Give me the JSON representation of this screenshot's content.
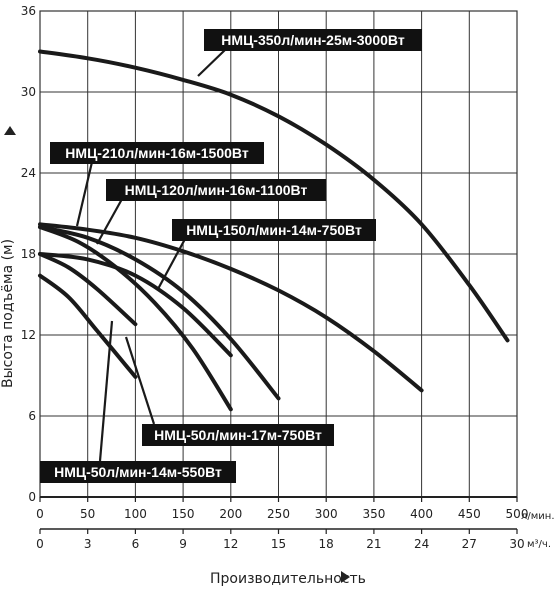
{
  "chart_data": {
    "type": "line",
    "title": "",
    "xlabel": "Производительность",
    "ylabel": "Высота подъёма (м)",
    "x_unit_primary": "л/мин.",
    "x_unit_secondary": "м³/ч.",
    "xlim": [
      0,
      500
    ],
    "ylim": [
      0,
      36
    ],
    "x_ticks_primary": [
      "0",
      "50",
      "100",
      "150",
      "200",
      "250",
      "300",
      "350",
      "400",
      "450",
      "500"
    ],
    "x_ticks_secondary": [
      "0",
      "3",
      "6",
      "9",
      "12",
      "15",
      "18",
      "21",
      "24",
      "27",
      "30"
    ],
    "y_ticks": [
      "0",
      "6",
      "12",
      "18",
      "24",
      "30",
      "36"
    ],
    "grid": true,
    "series": [
      {
        "name": "НМЦ-350л/мин-25м-3000Вт",
        "x": [
          0,
          50,
          100,
          150,
          200,
          250,
          300,
          350,
          400,
          450,
          490
        ],
        "y": [
          33.0,
          32.5,
          31.8,
          30.9,
          29.8,
          28.2,
          26.1,
          23.5,
          20.2,
          15.7,
          11.6
        ]
      },
      {
        "name": "НМЦ-210л/мин-16м-1500Вт",
        "x": [
          0,
          50,
          100,
          150,
          200,
          250,
          300,
          350,
          400
        ],
        "y": [
          20.2,
          19.8,
          19.2,
          18.2,
          16.9,
          15.3,
          13.3,
          10.8,
          7.9
        ]
      },
      {
        "name": "НМЦ-120л/мин-16м-1100Вт",
        "x": [
          0,
          50,
          100,
          150,
          200,
          250
        ],
        "y": [
          20.0,
          19.2,
          17.6,
          15.2,
          11.7,
          7.3
        ]
      },
      {
        "name": "НМЦ-150л/мин-14м-750Вт",
        "x": [
          0,
          50,
          100,
          150,
          200
        ],
        "y": [
          18.0,
          17.6,
          16.4,
          14.0,
          10.5
        ]
      },
      {
        "name": "НМЦ-50л/мин-17м-750Вт",
        "x": [
          0,
          40,
          80,
          120,
          160,
          200
        ],
        "y": [
          20.0,
          18.9,
          17.0,
          14.4,
          11.0,
          6.5
        ]
      },
      {
        "name": "НМЦ-50л/мин-14м-550Вт",
        "x": [
          0,
          30,
          60,
          100
        ],
        "y": [
          16.4,
          14.8,
          12.3,
          8.9
        ]
      },
      {
        "name": "",
        "x": [
          0,
          30,
          60,
          100
        ],
        "y": [
          18.0,
          17.0,
          15.4,
          12.8
        ]
      }
    ],
    "annotations": [
      "НМЦ-350л/мин-25м-3000Вт",
      "НМЦ-210л/мин-16м-1500Вт",
      "НМЦ-120л/мин-16м-1100Вт",
      "НМЦ-150л/мин-14м-750Вт",
      "НМЦ-50л/мин-17м-750Вт",
      "НМЦ-50л/мин-14м-550Вт"
    ]
  }
}
